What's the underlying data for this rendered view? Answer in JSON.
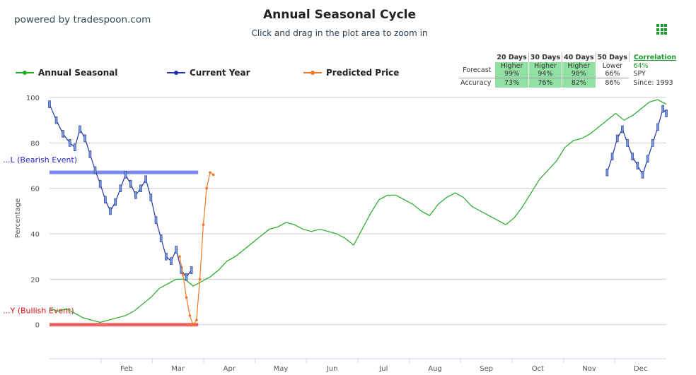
{
  "brand": "powered by tradespoon.com",
  "title": "Annual Seasonal Cycle",
  "subtitle": "Click and drag in the plot area to zoom in",
  "menu_icon": "grid-menu-icon",
  "legend": [
    {
      "label": "Annual Seasonal",
      "color": "#22aa22"
    },
    {
      "label": "Current Year",
      "color": "#2233aa"
    },
    {
      "label": "Predicted Price",
      "color": "#ee7722"
    }
  ],
  "stats": {
    "headers": [
      "20 Days",
      "30 Days",
      "40 Days",
      "50 Days"
    ],
    "forecast_label": "Forecast",
    "accuracy_label": "Accuracy",
    "forecast": [
      {
        "dir": "Higher",
        "pct": "99%"
      },
      {
        "dir": "Higher",
        "pct": "94%"
      },
      {
        "dir": "Higher",
        "pct": "98%"
      },
      {
        "dir": "Lower",
        "pct": "66%"
      }
    ],
    "accuracy": [
      "73%",
      "76%",
      "82%",
      "86%"
    ],
    "correlation_label": "Correlation",
    "correlation_value": "64%",
    "symbol": "SPY",
    "since": "Since: 1993"
  },
  "chart_data": {
    "type": "line",
    "ylabel": "Percentage",
    "ylim": [
      -15,
      100
    ],
    "y_ticks": [
      "0",
      "20",
      "40",
      "60",
      "80",
      "100"
    ],
    "x_ticks": [
      "Feb",
      "Mar",
      "Apr",
      "May",
      "Jun",
      "Jul",
      "Aug",
      "Sep",
      "Oct",
      "Nov",
      "Dec"
    ],
    "grid": true,
    "bearish_label": "...L (Bearish Event)",
    "bullish_label": "...Y (Bullish Event)",
    "bearish_level": 67,
    "bullish_level": 0,
    "bearish_color": "#7788ee",
    "bullish_color": "#ee6666",
    "series": [
      {
        "name": "Annual Seasonal",
        "color": "#22aa22",
        "points": [
          [
            0,
            7
          ],
          [
            5,
            6
          ],
          [
            10,
            7
          ],
          [
            15,
            5
          ],
          [
            20,
            3
          ],
          [
            25,
            2
          ],
          [
            30,
            1
          ],
          [
            35,
            2
          ],
          [
            40,
            3
          ],
          [
            45,
            4
          ],
          [
            50,
            6
          ],
          [
            55,
            9
          ],
          [
            60,
            12
          ],
          [
            65,
            16
          ],
          [
            70,
            18
          ],
          [
            75,
            20
          ],
          [
            80,
            20
          ],
          [
            85,
            17
          ],
          [
            90,
            19
          ],
          [
            95,
            21
          ],
          [
            100,
            24
          ],
          [
            105,
            28
          ],
          [
            110,
            30
          ],
          [
            115,
            33
          ],
          [
            120,
            36
          ],
          [
            125,
            39
          ],
          [
            130,
            42
          ],
          [
            135,
            43
          ],
          [
            140,
            45
          ],
          [
            145,
            44
          ],
          [
            150,
            42
          ],
          [
            155,
            41
          ],
          [
            160,
            42
          ],
          [
            165,
            41
          ],
          [
            170,
            40
          ],
          [
            175,
            38
          ],
          [
            180,
            35
          ],
          [
            185,
            42
          ],
          [
            190,
            49
          ],
          [
            195,
            55
          ],
          [
            200,
            57
          ],
          [
            205,
            57
          ],
          [
            210,
            55
          ],
          [
            215,
            53
          ],
          [
            220,
            50
          ],
          [
            225,
            48
          ],
          [
            230,
            53
          ],
          [
            235,
            56
          ],
          [
            240,
            58
          ],
          [
            245,
            56
          ],
          [
            250,
            52
          ],
          [
            255,
            50
          ],
          [
            260,
            48
          ],
          [
            265,
            46
          ],
          [
            270,
            44
          ],
          [
            275,
            47
          ],
          [
            280,
            52
          ],
          [
            285,
            58
          ],
          [
            290,
            64
          ],
          [
            295,
            68
          ],
          [
            300,
            72
          ],
          [
            305,
            78
          ],
          [
            310,
            81
          ],
          [
            315,
            82
          ],
          [
            320,
            84
          ],
          [
            325,
            87
          ],
          [
            330,
            90
          ],
          [
            335,
            93
          ],
          [
            340,
            90
          ],
          [
            345,
            92
          ],
          [
            350,
            95
          ],
          [
            355,
            98
          ],
          [
            360,
            99
          ],
          [
            365,
            97
          ]
        ]
      },
      {
        "name": "Current Year",
        "color": "#2233aa",
        "segments": [
          [
            [
              0,
              97
            ],
            [
              4,
              90
            ],
            [
              8,
              84
            ],
            [
              12,
              80
            ],
            [
              15,
              78
            ],
            [
              18,
              86
            ],
            [
              21,
              82
            ],
            [
              24,
              75
            ],
            [
              27,
              68
            ],
            [
              30,
              62
            ],
            [
              33,
              55
            ],
            [
              36,
              50
            ],
            [
              39,
              54
            ],
            [
              42,
              60
            ],
            [
              45,
              66
            ],
            [
              48,
              62
            ],
            [
              51,
              57
            ],
            [
              54,
              60
            ],
            [
              57,
              64
            ],
            [
              60,
              56
            ],
            [
              63,
              46
            ],
            [
              66,
              38
            ],
            [
              69,
              30
            ],
            [
              72,
              28
            ],
            [
              75,
              33
            ],
            [
              78,
              24
            ],
            [
              81,
              21
            ],
            [
              84,
              24
            ]
          ],
          [
            [
              330,
              67
            ],
            [
              333,
              74
            ],
            [
              336,
              82
            ],
            [
              339,
              86
            ],
            [
              342,
              80
            ],
            [
              345,
              74
            ],
            [
              348,
              70
            ],
            [
              351,
              66
            ],
            [
              354,
              73
            ],
            [
              357,
              80
            ],
            [
              360,
              87
            ],
            [
              363,
              95
            ],
            [
              365,
              93
            ]
          ]
        ]
      },
      {
        "name": "Predicted Price",
        "color": "#ee7722",
        "points": [
          [
            77,
            30
          ],
          [
            79,
            22
          ],
          [
            81,
            12
          ],
          [
            83,
            4
          ],
          [
            85,
            0
          ],
          [
            87,
            2
          ],
          [
            89,
            20
          ],
          [
            91,
            44
          ],
          [
            93,
            60
          ],
          [
            95,
            67
          ],
          [
            97,
            66
          ]
        ]
      }
    ]
  }
}
